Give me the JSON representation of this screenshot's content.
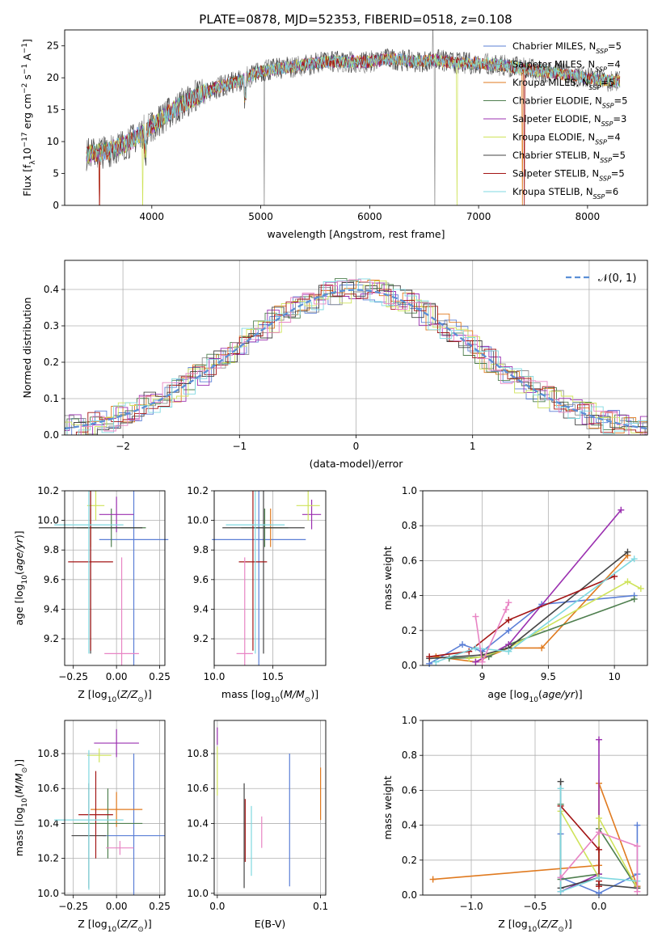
{
  "title": "PLATE=0878, MJD=52353, FIBERID=0518, z=0.108",
  "colors": {
    "Chabrier MILES": "#5b7fd6",
    "Salpeter MILES": "#8e8e8e",
    "Kroupa MILES": "#e07a1f",
    "Chabrier ELODIE": "#4f7f4f",
    "Salpeter ELODIE": "#9b30b0",
    "Kroupa ELODIE": "#cfe35a",
    "Chabrier STELIB": "#444444",
    "Salpeter STELIB": "#a31515",
    "Kroupa STELIB": "#7fd8e0",
    "Pink": "#e884c4",
    "Normal": "#5b8fd6"
  },
  "chart_data": [
    {
      "id": "spectrum",
      "type": "line",
      "xlabel": "wavelength [Angstrom, rest frame]",
      "ylabel": "Flux [f_λ10^-17 erg cm^-2 s^-1 A^-1]",
      "xlim": [
        3200,
        8550
      ],
      "ylim": [
        0,
        27.5
      ],
      "xticks": [
        4000,
        5000,
        6000,
        7000,
        8000
      ],
      "yticks": [
        0,
        5,
        10,
        15,
        20,
        25
      ],
      "legend_position": "upper right",
      "legend": [
        "Chabrier MILES, N_SSP=5",
        "Salpeter MILES, N_SSP=4",
        "Kroupa MILES, N_SSP=5",
        "Chabrier ELODIE, N_SSP=5",
        "Salpeter ELODIE, N_SSP=3",
        "Kroupa ELODIE, N_SSP=4",
        "Chabrier STELIB, N_SSP=5",
        "Salpeter STELIB, N_SSP=5",
        "Kroupa STELIB, N_SSP=6"
      ],
      "legend_labels": [
        {
          "name": "Chabrier MILES, N",
          "sub": "SSP",
          "tail": "=5"
        },
        {
          "name": "Salpeter MILES, N",
          "sub": "SSP",
          "tail": "=4"
        },
        {
          "name": "Kroupa MILES, N",
          "sub": "SSP",
          "tail": "=5"
        },
        {
          "name": "Chabrier ELODIE, N",
          "sub": "SSP",
          "tail": "=5"
        },
        {
          "name": "Salpeter ELODIE, N",
          "sub": "SSP",
          "tail": "=3"
        },
        {
          "name": "Kroupa ELODIE, N",
          "sub": "SSP",
          "tail": "=4"
        },
        {
          "name": "Chabrier STELIB, N",
          "sub": "SSP",
          "tail": "=5"
        },
        {
          "name": "Salpeter STELIB, N",
          "sub": "SSP",
          "tail": "=5"
        },
        {
          "name": "Kroupa STELIB, N",
          "sub": "SSP",
          "tail": "=6"
        }
      ],
      "continuum_x": [
        3400,
        3600,
        3800,
        4000,
        4200,
        4400,
        4600,
        4800,
        5000,
        5200,
        5400,
        5600,
        5800,
        6000,
        6200,
        6400,
        6600,
        6800,
        7000,
        7200,
        7400,
        7600,
        7800,
        8000,
        8200,
        8300
      ],
      "continuum_y": [
        8,
        8.5,
        10,
        12.5,
        15,
        17,
        18.5,
        19.5,
        21,
        21.5,
        22,
        22.5,
        22.5,
        22.5,
        23,
        22.5,
        22.8,
        22.3,
        22.3,
        22,
        21.5,
        21,
        20.5,
        20,
        19.5,
        19.5
      ]
    },
    {
      "id": "residuals",
      "type": "histogram",
      "xlabel": "(data-model)/error",
      "ylabel": "Normed distribution",
      "xlim": [
        -2.5,
        2.5
      ],
      "ylim": [
        0,
        0.48
      ],
      "xticks": [
        -2,
        -1,
        0,
        1,
        2
      ],
      "yticks": [
        0.0,
        0.1,
        0.2,
        0.3,
        0.4
      ],
      "legend": [
        "N(0,1)"
      ],
      "legend_display": "𝒩(0, 1)",
      "legend_position": "upper right",
      "bin_width": 0.1
    },
    {
      "id": "age_vs_Z",
      "type": "errorbar",
      "xlabel": "Z [log10(Z/Z☉)]",
      "ylabel": "age [log10(age/yr)]",
      "xlim": [
        -0.3,
        0.28
      ],
      "ylim": [
        9.02,
        10.2
      ],
      "xticks": [
        -0.25,
        0.0,
        0.25
      ],
      "xtick_labels": [
        "−0.25",
        "0.00",
        "0.25"
      ],
      "yticks": [
        9.2,
        9.4,
        9.6,
        9.8,
        10.0,
        10.2
      ],
      "points": [
        {
          "series": "Chabrier MILES",
          "x": 0.1,
          "xerr": 0.2,
          "y": 9.87,
          "yerr": 0.9
        },
        {
          "series": "Kroupa MILES",
          "x": -0.15,
          "xerr": 0.05,
          "y": 9.95,
          "yerr": 0.13
        },
        {
          "series": "Chabrier ELODIE",
          "x": -0.03,
          "xerr": 0.2,
          "y": 9.95,
          "yerr": 0.13
        },
        {
          "series": "Salpeter ELODIE",
          "x": 0.0,
          "xerr": 0.1,
          "y": 10.04,
          "yerr": 0.12
        },
        {
          "series": "Kroupa ELODIE",
          "x": -0.12,
          "xerr": 0.05,
          "y": 10.1,
          "yerr": 0.1
        },
        {
          "series": "Chabrier STELIB",
          "x": -0.15,
          "xerr": 0.3,
          "y": 9.95,
          "yerr": 0.85
        },
        {
          "series": "Salpeter STELIB",
          "x": -0.15,
          "xerr": 0.13,
          "y": 9.72,
          "yerr": 0.6
        },
        {
          "series": "Kroupa STELIB",
          "x": -0.16,
          "xerr": 0.2,
          "y": 9.97,
          "yerr": 0.87
        },
        {
          "series": "Pink",
          "x": 0.03,
          "xerr": 0.1,
          "y": 9.1,
          "yerr": 0.65
        }
      ]
    },
    {
      "id": "age_vs_mass",
      "type": "errorbar",
      "xlabel": "mass [log10(M/M☉)]",
      "ylabel": "",
      "xlim": [
        10.0,
        10.95
      ],
      "ylim": [
        9.02,
        10.2
      ],
      "xticks": [
        10.0,
        10.5
      ],
      "xtick_labels": [
        "10.0",
        "10.5"
      ],
      "yticks": [
        9.2,
        9.4,
        9.6,
        9.8,
        10.0,
        10.2
      ],
      "points": [
        {
          "series": "Chabrier MILES",
          "x": 10.38,
          "xerr": 0.4,
          "y": 9.87,
          "yerr": 0.9
        },
        {
          "series": "Kroupa MILES",
          "x": 10.48,
          "xerr": 0.1,
          "y": 9.95,
          "yerr": 0.13
        },
        {
          "series": "Chabrier ELODIE",
          "x": 10.43,
          "xerr": 0.2,
          "y": 9.95,
          "yerr": 0.13
        },
        {
          "series": "Salpeter ELODIE",
          "x": 10.83,
          "xerr": 0.08,
          "y": 10.04,
          "yerr": 0.1
        },
        {
          "series": "Kroupa ELODIE",
          "x": 10.8,
          "xerr": 0.1,
          "y": 10.1,
          "yerr": 0.1
        },
        {
          "series": "Chabrier STELIB",
          "x": 10.42,
          "xerr": 0.35,
          "y": 9.95,
          "yerr": 0.85
        },
        {
          "series": "Salpeter STELIB",
          "x": 10.33,
          "xerr": 0.12,
          "y": 9.72,
          "yerr": 0.6
        },
        {
          "series": "Kroupa STELIB",
          "x": 10.35,
          "xerr": 0.25,
          "y": 9.97,
          "yerr": 0.87
        },
        {
          "series": "Pink",
          "x": 10.26,
          "xerr": 0.07,
          "y": 9.1,
          "yerr": 0.65
        }
      ]
    },
    {
      "id": "weight_vs_age",
      "type": "line",
      "xlabel": "age [log10(age/yr)]",
      "ylabel": "mass weight",
      "xlim": [
        8.55,
        10.25
      ],
      "ylim": [
        0,
        1.0
      ],
      "xticks": [
        9.0,
        9.5,
        10.0
      ],
      "yticks": [
        0.0,
        0.2,
        0.4,
        0.6,
        0.8,
        1.0
      ],
      "series": [
        {
          "name": "Chabrier MILES",
          "x": [
            8.6,
            8.85,
            9.0,
            9.2,
            9.45,
            10.15
          ],
          "y": [
            0.01,
            0.12,
            0.08,
            0.2,
            0.35,
            0.4
          ]
        },
        {
          "name": "Kroupa MILES",
          "x": [
            8.65,
            8.95,
            9.2,
            9.45,
            10.1
          ],
          "y": [
            0.05,
            0.02,
            0.1,
            0.1,
            0.63
          ]
        },
        {
          "name": "Chabrier ELODIE",
          "x": [
            8.75,
            9.05,
            9.2,
            10.15
          ],
          "y": [
            0.04,
            0.05,
            0.12,
            0.38
          ]
        },
        {
          "name": "Salpeter ELODIE",
          "x": [
            8.95,
            9.2,
            10.05
          ],
          "y": [
            0.02,
            0.12,
            0.89
          ]
        },
        {
          "name": "Kroupa ELODIE",
          "x": [
            8.9,
            9.0,
            9.2,
            10.1,
            10.2
          ],
          "y": [
            0.04,
            0.05,
            0.1,
            0.48,
            0.44
          ]
        },
        {
          "name": "Chabrier STELIB",
          "x": [
            8.6,
            9.0,
            9.2,
            10.1
          ],
          "y": [
            0.04,
            0.06,
            0.1,
            0.65
          ]
        },
        {
          "name": "Salpeter STELIB",
          "x": [
            8.6,
            8.9,
            9.2,
            10.0
          ],
          "y": [
            0.05,
            0.08,
            0.26,
            0.51
          ]
        },
        {
          "name": "Kroupa STELIB",
          "x": [
            8.65,
            8.95,
            9.2,
            10.15
          ],
          "y": [
            0.02,
            0.1,
            0.08,
            0.61
          ]
        },
        {
          "name": "Pink",
          "x": [
            8.95,
            9.0,
            9.18,
            9.2
          ],
          "y": [
            0.28,
            0.02,
            0.32,
            0.36
          ]
        }
      ]
    },
    {
      "id": "mass_vs_Z",
      "type": "errorbar",
      "xlabel": "Z [log10(Z/Z☉)]",
      "ylabel": "mass [log10(M/M☉)]",
      "xlim": [
        -0.3,
        0.28
      ],
      "ylim": [
        9.99,
        10.99
      ],
      "xticks": [
        -0.25,
        0.0,
        0.25
      ],
      "xtick_labels": [
        "−0.25",
        "0.00",
        "0.25"
      ],
      "yticks": [
        10.0,
        10.2,
        10.4,
        10.6,
        10.8
      ],
      "points": [
        {
          "series": "Chabrier MILES",
          "x": 0.1,
          "xerr": 0.18,
          "y": 10.33,
          "yerr": 0.47
        },
        {
          "series": "Kroupa MILES",
          "x": 0.0,
          "xerr": 0.15,
          "y": 10.48,
          "yerr": 0.1
        },
        {
          "series": "Chabrier ELODIE",
          "x": -0.05,
          "xerr": 0.2,
          "y": 10.4,
          "yerr": 0.2
        },
        {
          "series": "Salpeter ELODIE",
          "x": 0.0,
          "xerr": 0.13,
          "y": 10.86,
          "yerr": 0.08
        },
        {
          "series": "Kroupa ELODIE",
          "x": -0.1,
          "xerr": 0.07,
          "y": 10.79,
          "yerr": 0.04
        },
        {
          "series": "Chabrier STELIB",
          "x": -0.16,
          "xerr": 0.1,
          "y": 10.33,
          "yerr": 0.3
        },
        {
          "series": "Salpeter STELIB",
          "x": -0.12,
          "xerr": 0.1,
          "y": 10.45,
          "yerr": 0.25
        },
        {
          "series": "Kroupa STELIB",
          "x": -0.16,
          "xerr": 0.2,
          "y": 10.42,
          "yerr": 0.4
        },
        {
          "series": "Pink",
          "x": 0.02,
          "xerr": 0.08,
          "y": 10.26,
          "yerr": 0.04
        }
      ]
    },
    {
      "id": "mass_vs_EBV",
      "type": "errorbar",
      "xlabel": "E(B-V)",
      "ylabel": "",
      "xlim": [
        -0.003,
        0.105
      ],
      "ylim": [
        9.99,
        10.99
      ],
      "xticks": [
        0.0,
        0.1
      ],
      "xtick_labels": [
        "0.0",
        "0.1"
      ],
      "yticks": [
        10.0,
        10.2,
        10.4,
        10.6,
        10.8
      ],
      "points": [
        {
          "series": "Chabrier MILES",
          "x": 0.07,
          "y": 10.42,
          "yerr": 0.38
        },
        {
          "series": "Kroupa MILES",
          "x": 0.1,
          "y": 10.57,
          "yerr": 0.15
        },
        {
          "series": "Salpeter ELODIE",
          "x": 0.0,
          "y": 10.9,
          "yerr": 0.05
        },
        {
          "series": "Kroupa ELODIE",
          "x": 0.0,
          "y": 10.7,
          "yerr": 0.14
        },
        {
          "series": "Chabrier STELIB",
          "x": 0.026,
          "y": 10.33,
          "yerr": 0.3
        },
        {
          "series": "Salpeter STELIB",
          "x": 0.027,
          "y": 10.36,
          "yerr": 0.18
        },
        {
          "series": "Kroupa STELIB",
          "x": 0.033,
          "y": 10.3,
          "yerr": 0.2
        },
        {
          "series": "Pink",
          "x": 0.043,
          "y": 10.35,
          "yerr": 0.09
        }
      ]
    },
    {
      "id": "weight_vs_Z",
      "type": "line",
      "xlabel": "Z [log10(Z/Z☉)]",
      "ylabel": "mass weight",
      "xlim": [
        -1.38,
        0.38
      ],
      "ylim": [
        0,
        1.0
      ],
      "xticks": [
        -1.0,
        -0.5,
        0.0
      ],
      "xtick_labels": [
        "−1.0",
        "−0.5",
        "0.0"
      ],
      "yticks": [
        0.0,
        0.2,
        0.4,
        0.6,
        0.8,
        1.0
      ],
      "series": [
        {
          "name": "Chabrier MILES",
          "x": [
            -0.3,
            -0.3,
            0.0,
            0.3,
            0.3,
            0.3
          ],
          "y": [
            0.35,
            0.1,
            0.01,
            0.12,
            0.4,
            0.05
          ]
        },
        {
          "name": "Kroupa MILES",
          "x": [
            -1.3,
            0.0,
            0.0,
            0.3
          ],
          "y": [
            0.09,
            0.17,
            0.64,
            0.05
          ]
        },
        {
          "name": "Chabrier ELODIE",
          "x": [
            -0.3,
            -0.3,
            0.0,
            0.0,
            0.3
          ],
          "y": [
            0.52,
            0.09,
            0.12,
            0.38,
            0.04
          ]
        },
        {
          "name": "Salpeter ELODIE",
          "x": [
            -0.3,
            0.0,
            0.0
          ],
          "y": [
            0.02,
            0.12,
            0.89
          ]
        },
        {
          "name": "Kroupa ELODIE",
          "x": [
            -0.3,
            0.0,
            0.0,
            0.3
          ],
          "y": [
            0.48,
            0.1,
            0.44,
            0.04
          ]
        },
        {
          "name": "Chabrier STELIB",
          "x": [
            -0.3,
            -0.3,
            0.0,
            0.0,
            0.3
          ],
          "y": [
            0.65,
            0.04,
            0.1,
            0.06,
            0.04
          ]
        },
        {
          "name": "Salpeter STELIB",
          "x": [
            -0.3,
            0.0,
            0.0,
            0.0
          ],
          "y": [
            0.51,
            0.26,
            0.08,
            0.05
          ]
        },
        {
          "name": "Kroupa STELIB",
          "x": [
            -0.3,
            -0.3,
            0.0,
            0.3
          ],
          "y": [
            0.61,
            0.02,
            0.1,
            0.08
          ]
        },
        {
          "name": "Pink",
          "x": [
            -0.3,
            0.0,
            0.3,
            0.3
          ],
          "y": [
            0.1,
            0.36,
            0.28,
            0.02
          ]
        }
      ]
    }
  ]
}
